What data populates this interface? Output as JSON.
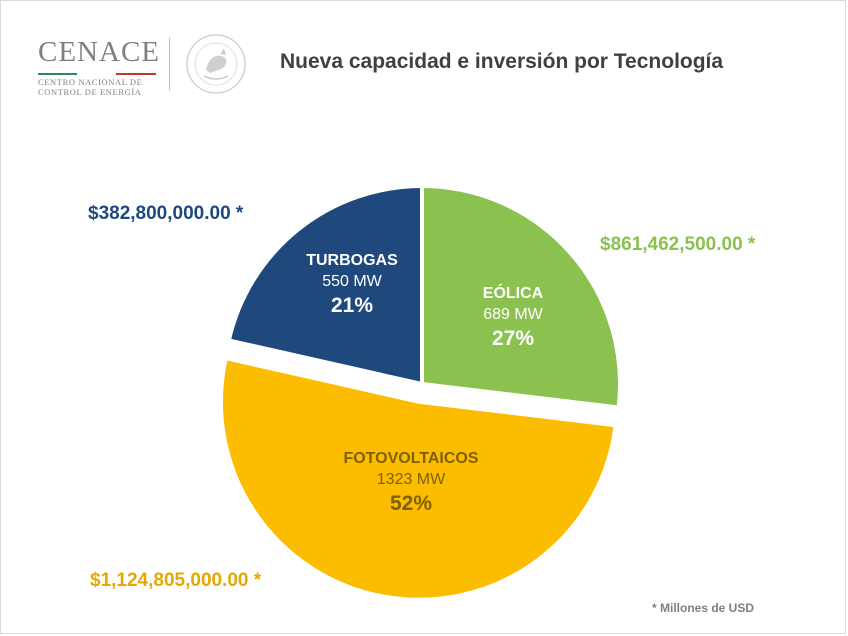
{
  "header": {
    "logo": {
      "wordmark": "CENACE",
      "subtitle_line1": "CENTRO NACIONAL DE",
      "subtitle_line2": "CONTROL DE ENERGÍA"
    },
    "seal_icon": "mexico-coat-of-arms-icon",
    "title": "Nueva capacidad e inversión por Tecnología"
  },
  "chart_data": {
    "type": "pie",
    "title": "Nueva capacidad e inversión por Tecnología",
    "slices": [
      {
        "name": "EÓLICA",
        "capacity_mw": 689,
        "capacity_label": "689 MW",
        "percent": 27,
        "percent_label": "27%",
        "investment_label": "$861,462,500.00 *",
        "color": "#8bc14f",
        "label_color": "#ffffff",
        "investment_color": "#8bc14f",
        "exploded": false
      },
      {
        "name": "FOTOVOLTAICOS",
        "capacity_mw": 1323,
        "capacity_label": "1323 MW",
        "percent": 52,
        "percent_label": "52%",
        "investment_label": "$1,124,805,000.00 *",
        "color": "#fcbd00",
        "label_color": "#7f6000",
        "investment_color": "#e6a800",
        "exploded": true
      },
      {
        "name": "TURBOGAS",
        "capacity_mw": 550,
        "capacity_label": "550 MW",
        "percent": 21,
        "percent_label": "21%",
        "investment_label": "$382,800,000.00 *",
        "color": "#1f497d",
        "label_color": "#ffffff",
        "investment_color": "#1f497d",
        "exploded": false
      }
    ]
  },
  "footnote": "* Millones de USD"
}
